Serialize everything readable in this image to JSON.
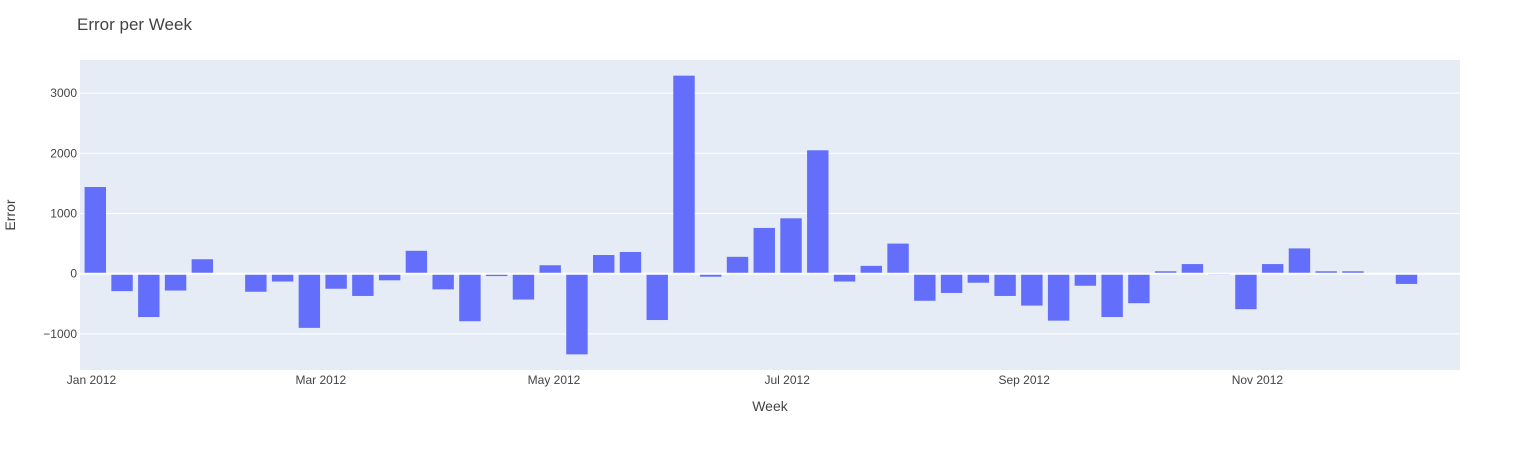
{
  "chart_data": {
    "type": "bar",
    "title": "Error per Week",
    "xlabel": "Week",
    "ylabel": "Error",
    "x_axis_type": "date",
    "xlim": [
      "2011-12-29",
      "2012-12-24"
    ],
    "ylim": [
      -1600,
      3550
    ],
    "grid": true,
    "legend": "none",
    "bar_color": "#636efa",
    "plot_background": "#e5ecf6",
    "x_ticks": [
      {
        "date": "2012-01-01",
        "label": "Jan 2012"
      },
      {
        "date": "2012-03-01",
        "label": "Mar 2012"
      },
      {
        "date": "2012-05-01",
        "label": "May 2012"
      },
      {
        "date": "2012-07-01",
        "label": "Jul 2012"
      },
      {
        "date": "2012-09-01",
        "label": "Sep 2012"
      },
      {
        "date": "2012-11-01",
        "label": "Nov 2012"
      }
    ],
    "y_ticks": [
      {
        "value": -1000,
        "label": "−1000"
      },
      {
        "value": 0,
        "label": "0"
      },
      {
        "value": 1000,
        "label": "1000"
      },
      {
        "value": 2000,
        "label": "2000"
      },
      {
        "value": 3000,
        "label": "3000"
      }
    ],
    "x": [
      "2012-01-02",
      "2012-01-09",
      "2012-01-16",
      "2012-01-23",
      "2012-01-30",
      "2012-02-06",
      "2012-02-13",
      "2012-02-20",
      "2012-02-27",
      "2012-03-05",
      "2012-03-12",
      "2012-03-19",
      "2012-03-26",
      "2012-04-02",
      "2012-04-09",
      "2012-04-16",
      "2012-04-23",
      "2012-04-30",
      "2012-05-07",
      "2012-05-14",
      "2012-05-21",
      "2012-05-28",
      "2012-06-04",
      "2012-06-11",
      "2012-06-18",
      "2012-06-25",
      "2012-07-02",
      "2012-07-09",
      "2012-07-16",
      "2012-07-23",
      "2012-07-30",
      "2012-08-06",
      "2012-08-13",
      "2012-08-20",
      "2012-08-27",
      "2012-09-03",
      "2012-09-10",
      "2012-09-17",
      "2012-09-24",
      "2012-10-01",
      "2012-10-08",
      "2012-10-15",
      "2012-10-22",
      "2012-10-29",
      "2012-11-05",
      "2012-11-12",
      "2012-11-19",
      "2012-11-26",
      "2012-12-03",
      "2012-12-10",
      "2012-12-17"
    ],
    "values": [
      1440,
      -290,
      -720,
      -280,
      240,
      0,
      -300,
      -130,
      -900,
      -250,
      -370,
      -110,
      380,
      -260,
      -790,
      -40,
      -430,
      140,
      -1340,
      310,
      360,
      -770,
      3290,
      -50,
      280,
      760,
      920,
      2050,
      -130,
      130,
      500,
      -450,
      -320,
      -150,
      -370,
      -530,
      -780,
      -200,
      -720,
      -490,
      40,
      160,
      -20,
      -590,
      160,
      420,
      40,
      40,
      0,
      -170,
      0
    ]
  }
}
